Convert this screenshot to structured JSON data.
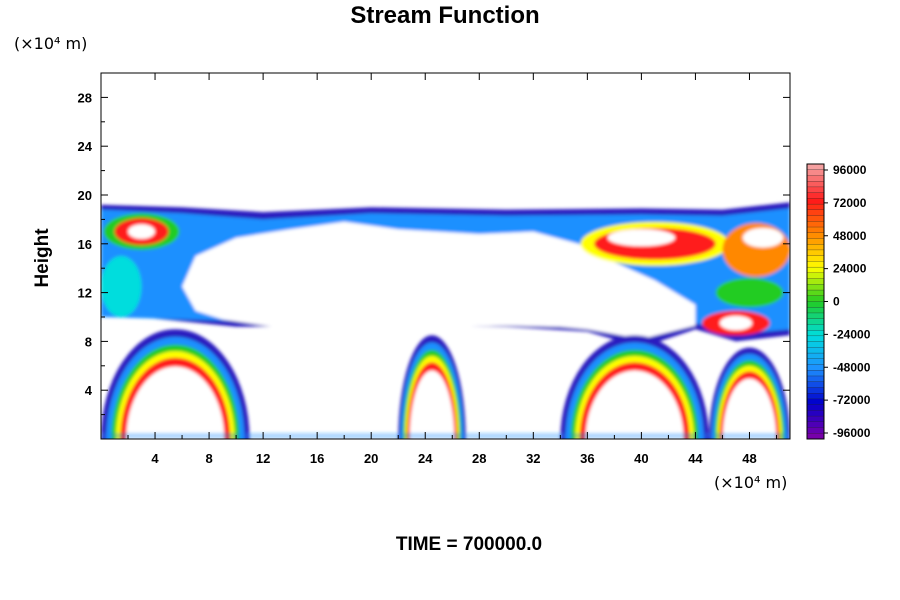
{
  "chart_data": {
    "type": "heatmap",
    "title": "Stream Function",
    "x_unit": "(×10⁴ m)",
    "y_unit": "(×10⁴ m)",
    "ylabel": "Height",
    "xlabel": "",
    "xlim": [
      0,
      51
    ],
    "ylim": [
      0,
      30
    ],
    "xticks": [
      4,
      8,
      12,
      16,
      20,
      24,
      28,
      32,
      36,
      40,
      44,
      48
    ],
    "yticks": [
      4,
      8,
      12,
      16,
      20,
      24,
      28
    ],
    "colorbar": {
      "range": [
        -96000,
        96000
      ],
      "labels": [
        "96000",
        "72000",
        "48000",
        "24000",
        "0",
        "-24000",
        "-48000",
        "-72000",
        "-96000"
      ],
      "colors": [
        "#f5a0a0",
        "#ff1a1a",
        "#ff8800",
        "#ffff00",
        "#22cc22",
        "#00dddd",
        "#1e90ff",
        "#0000cc",
        "#7700aa"
      ]
    },
    "field_regions": [
      {
        "desc": "upper band",
        "x_range": [
          0,
          51
        ],
        "y_range": [
          8,
          19
        ]
      },
      {
        "desc": "closed cell",
        "x_range": [
          0,
          11
        ],
        "y_range": [
          0,
          9
        ]
      },
      {
        "desc": "closed cell",
        "x_range": [
          22,
          27
        ],
        "y_range": [
          0,
          8.5
        ]
      },
      {
        "desc": "closed cell",
        "x_range": [
          34,
          45
        ],
        "y_range": [
          0,
          8.5
        ]
      },
      {
        "desc": "closed cell",
        "x_range": [
          45,
          51
        ],
        "y_range": [
          0,
          7.5
        ]
      }
    ],
    "footer": "TIME = 700000.0"
  }
}
